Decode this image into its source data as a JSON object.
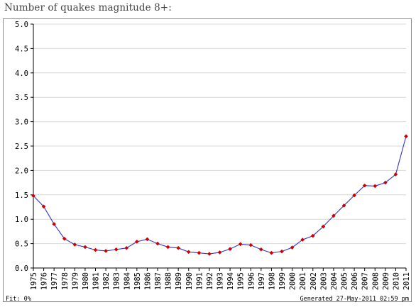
{
  "page": {
    "heading": "Number of quakes magnitude 8+:"
  },
  "footer": {
    "fit": "Fit: 0%",
    "generated": "Generated 27-May-2011 02:59 pm"
  },
  "colors": {
    "line": "#3333cc",
    "point": "#cc0000",
    "grid": "#d8d8d8",
    "axis": "#000000"
  },
  "chart_data": {
    "type": "line",
    "title": "",
    "xlabel": "",
    "ylabel": "",
    "ylim": [
      0,
      5
    ],
    "yticks": [
      "0.0",
      "0.5",
      "1.0",
      "1.5",
      "2.0",
      "2.5",
      "3.0",
      "3.5",
      "4.0",
      "4.5",
      "5.0"
    ],
    "grid": true,
    "legend": "none",
    "x": [
      "1975",
      "1976",
      "1977",
      "1978",
      "1979",
      "1980",
      "1981",
      "1982",
      "1983",
      "1984",
      "1985",
      "1986",
      "1987",
      "1988",
      "1989",
      "1990",
      "1991",
      "1992",
      "1993",
      "1994",
      "1995",
      "1996",
      "1997",
      "1998",
      "1999",
      "2000",
      "2001",
      "2002",
      "2003",
      "2004",
      "2005",
      "2006",
      "2007",
      "2008",
      "2009",
      "2010",
      "2011"
    ],
    "series": [
      {
        "values": [
          1.48,
          1.26,
          0.9,
          0.6,
          0.48,
          0.43,
          0.37,
          0.35,
          0.38,
          0.41,
          0.54,
          0.59,
          0.5,
          0.43,
          0.41,
          0.33,
          0.31,
          0.29,
          0.32,
          0.39,
          0.49,
          0.47,
          0.38,
          0.31,
          0.34,
          0.42,
          0.58,
          0.66,
          0.85,
          1.07,
          1.28,
          1.49,
          1.69,
          1.68,
          1.75,
          1.92,
          2.7
        ]
      }
    ]
  }
}
